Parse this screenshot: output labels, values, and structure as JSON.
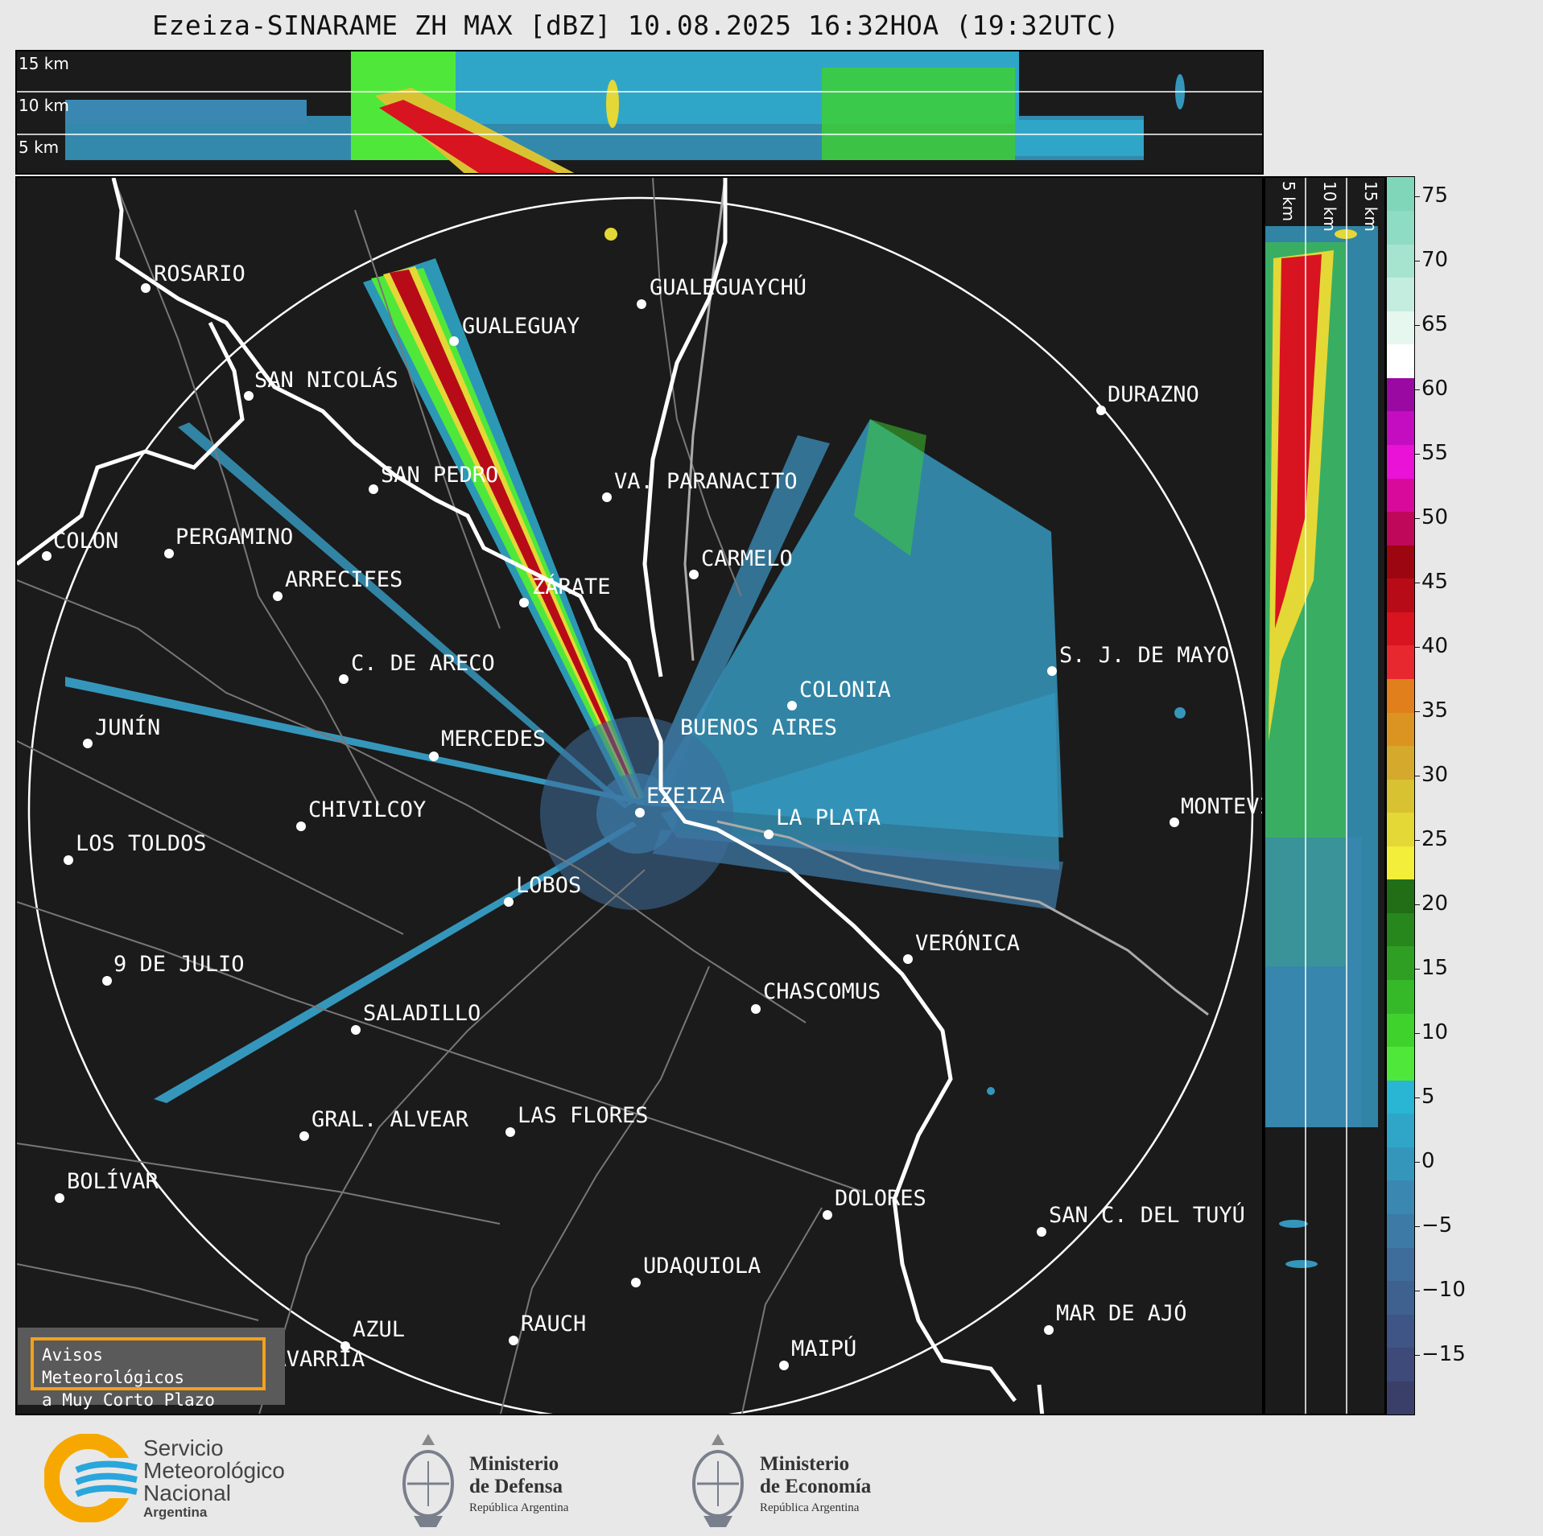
{
  "title": "Ezeiza-SINARAME ZH MAX [dBZ] 10.08.2025 16:32HOA (19:32UTC)",
  "top_panel": {
    "height_labels": [
      "15 km",
      "10 km",
      "5 km"
    ]
  },
  "side_panel": {
    "height_labels": [
      "5 km",
      "10 km",
      "15 km"
    ]
  },
  "colorbar": {
    "unit": "dBZ",
    "ticks": [
      "75",
      "70",
      "65",
      "60",
      "55",
      "50",
      "45",
      "40",
      "35",
      "30",
      "25",
      "20",
      "15",
      "10",
      "5",
      "0",
      "−5",
      "−10",
      "−15"
    ],
    "colors": [
      "#3a3f6a",
      "#3d4a7a",
      "#3e5585",
      "#3f6190",
      "#3e6d9b",
      "#3d7aa6",
      "#3a88b1",
      "#3596bc",
      "#2fa6c8",
      "#29b5d4",
      "#4fe83a",
      "#3fd22d",
      "#36b928",
      "#2e9f22",
      "#27861c",
      "#216e17",
      "#f2ee3a",
      "#e4d836",
      "#d9c232",
      "#d4a92c",
      "#db9322",
      "#e07f1c",
      "#e8282f",
      "#d81420",
      "#b80b18",
      "#9c0610",
      "#c0085a",
      "#d80a9c",
      "#e912d6",
      "#c40cc0",
      "#9a09a2",
      "#ffffff",
      "#e6f7ef",
      "#c4ede0",
      "#a6e4d0",
      "#8edcc3",
      "#7fd6b8"
    ]
  },
  "cities": [
    {
      "name": "ROSARIO"
    },
    {
      "name": "GUALEGUAYCHÚ"
    },
    {
      "name": "GUALEGUAY"
    },
    {
      "name": "SAN NICOLÁS"
    },
    {
      "name": "DURAZNO"
    },
    {
      "name": "SAN PEDRO"
    },
    {
      "name": "VA. PARANACITO"
    },
    {
      "name": "COLON"
    },
    {
      "name": "PERGAMINO"
    },
    {
      "name": "CARMELO"
    },
    {
      "name": "ARRECIFES"
    },
    {
      "name": "ZÁRATE"
    },
    {
      "name": "S. J. DE MAYO"
    },
    {
      "name": "C. DE ARECO"
    },
    {
      "name": "COLONIA"
    },
    {
      "name": "JUNÍN"
    },
    {
      "name": "MERCEDES"
    },
    {
      "name": "BUENOS AIRES"
    },
    {
      "name": "MONTEVIDEO"
    },
    {
      "name": "EZEIZA"
    },
    {
      "name": "CHIVILCOY"
    },
    {
      "name": "LA PLATA"
    },
    {
      "name": "LOS TOLDOS"
    },
    {
      "name": "LOBOS"
    },
    {
      "name": "VERÓNICA"
    },
    {
      "name": "9 DE JULIO"
    },
    {
      "name": "CHASCOMUS"
    },
    {
      "name": "SALADILLO"
    },
    {
      "name": "GRAL. ALVEAR"
    },
    {
      "name": "LAS FLORES"
    },
    {
      "name": "BOLÍVAR"
    },
    {
      "name": "DOLORES"
    },
    {
      "name": "SAN C. DEL TUYÚ"
    },
    {
      "name": "UDAQUIOLA"
    },
    {
      "name": "MAR DE AJÓ"
    },
    {
      "name": "AZUL"
    },
    {
      "name": "RAUCH"
    },
    {
      "name": "MAIPÚ"
    },
    {
      "name": "OLAVARRÍA"
    }
  ],
  "avisos": {
    "line1": "Avisos Meteorológicos",
    "line2": "a Muy Corto Plazo"
  },
  "footer": {
    "smn": {
      "line1": "Servicio",
      "line2": "Meteorológico",
      "line3": "Nacional",
      "line4": "Argentina"
    },
    "defensa": {
      "line1": "Ministerio",
      "line2": "de Defensa",
      "line3": "República Argentina"
    },
    "economia": {
      "line1": "Ministerio",
      "line2": "de Economía",
      "line3": "República Argentina"
    }
  }
}
